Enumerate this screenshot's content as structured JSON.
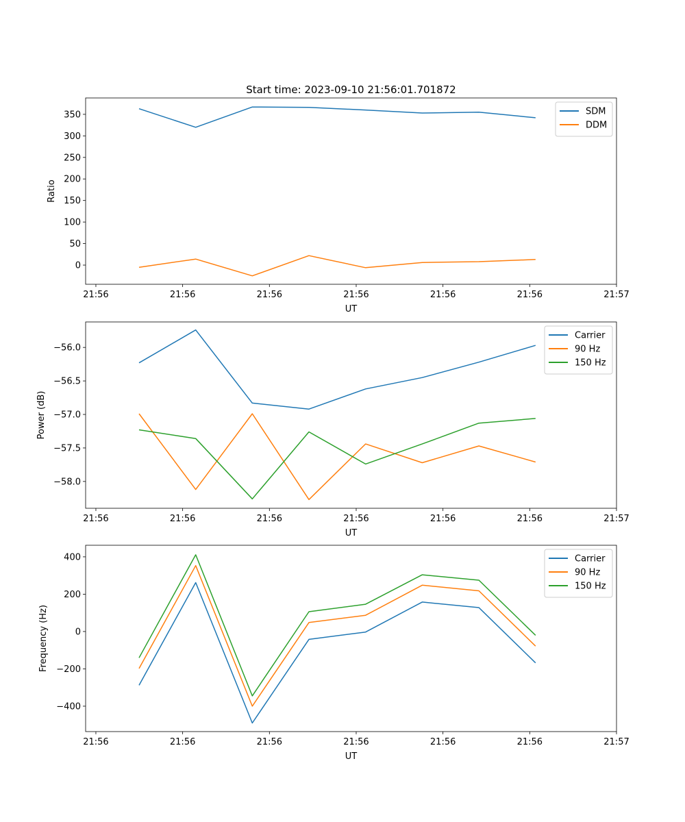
{
  "chart_data": [
    {
      "type": "line",
      "title": "Start time: 2023-09-10 21:56:01.701872",
      "xlabel": "UT",
      "ylabel": "Ratio",
      "x": [
        0,
        1,
        2,
        3,
        4,
        5,
        6,
        7
      ],
      "xlim": [
        -0.943,
        8.43
      ],
      "xticks": [
        -0.762,
        0.77,
        2.302,
        3.834,
        5.366,
        6.898,
        8.43
      ],
      "xtick_labels": [
        "21:56",
        "21:56",
        "21:56",
        "21:56",
        "21:56",
        "21:56",
        "21:57"
      ],
      "ylim": [
        -44.5,
        388
      ],
      "yticks": [
        0,
        50,
        100,
        150,
        200,
        250,
        300,
        350
      ],
      "ytick_labels": [
        "0",
        "50",
        "100",
        "150",
        "200",
        "250",
        "300",
        "350"
      ],
      "legend": "top-right",
      "series": [
        {
          "name": "SDM",
          "color": "#1f77b4",
          "values": [
            363,
            320,
            367,
            366,
            360,
            353,
            355,
            342
          ]
        },
        {
          "name": "DDM",
          "color": "#ff7f0e",
          "values": [
            -5,
            14,
            -25,
            22,
            -6,
            6,
            8,
            13
          ]
        }
      ]
    },
    {
      "type": "line",
      "title": "",
      "xlabel": "UT",
      "ylabel": "Power (dB)",
      "x": [
        0,
        1,
        2,
        3,
        4,
        5,
        6,
        7
      ],
      "xlim": [
        -0.943,
        8.43
      ],
      "xticks": [
        -0.762,
        0.77,
        2.302,
        3.834,
        5.366,
        6.898,
        8.43
      ],
      "xtick_labels": [
        "21:56",
        "21:56",
        "21:56",
        "21:56",
        "21:56",
        "21:56",
        "21:57"
      ],
      "ylim": [
        -58.4,
        -55.62
      ],
      "yticks": [
        -58.0,
        -57.5,
        -57.0,
        -56.5,
        -56.0
      ],
      "ytick_labels": [
        "−58.0",
        "−57.5",
        "−57.0",
        "−56.5",
        "−56.0"
      ],
      "legend": "top-right",
      "series": [
        {
          "name": "Carrier",
          "color": "#1f77b4",
          "values": [
            -56.23,
            -55.74,
            -56.83,
            -56.92,
            -56.62,
            -56.45,
            -56.22,
            -55.97
          ]
        },
        {
          "name": "90 Hz",
          "color": "#ff7f0e",
          "values": [
            -56.99,
            -58.12,
            -56.99,
            -58.27,
            -57.44,
            -57.72,
            -57.47,
            -57.71
          ]
        },
        {
          "name": "150 Hz",
          "color": "#2ca02c",
          "values": [
            -57.23,
            -57.36,
            -58.26,
            -57.26,
            -57.74,
            -57.44,
            -57.13,
            -57.06
          ]
        }
      ]
    },
    {
      "type": "line",
      "title": "",
      "xlabel": "UT",
      "ylabel": "Frequency (Hz)",
      "x": [
        0,
        1,
        2,
        3,
        4,
        5,
        6,
        7
      ],
      "xlim": [
        -0.943,
        8.43
      ],
      "xticks": [
        -0.762,
        0.77,
        2.302,
        3.834,
        5.366,
        6.898,
        8.43
      ],
      "xtick_labels": [
        "21:56",
        "21:56",
        "21:56",
        "21:56",
        "21:56",
        "21:56",
        "21:57"
      ],
      "ylim": [
        -536,
        462
      ],
      "yticks": [
        -400,
        -200,
        0,
        200,
        400
      ],
      "ytick_labels": [
        "−400",
        "−200",
        "0",
        "200",
        "400"
      ],
      "legend": "top-right",
      "series": [
        {
          "name": "Carrier",
          "color": "#1f77b4",
          "values": [
            -288,
            262,
            -490,
            -42,
            -3,
            158,
            128,
            -168
          ]
        },
        {
          "name": "90 Hz",
          "color": "#ff7f0e",
          "values": [
            -198,
            353,
            -400,
            48,
            87,
            248,
            218,
            -78
          ]
        },
        {
          "name": "150 Hz",
          "color": "#2ca02c",
          "values": [
            -141,
            411,
            -345,
            106,
            146,
            304,
            275,
            -20
          ]
        }
      ]
    }
  ]
}
